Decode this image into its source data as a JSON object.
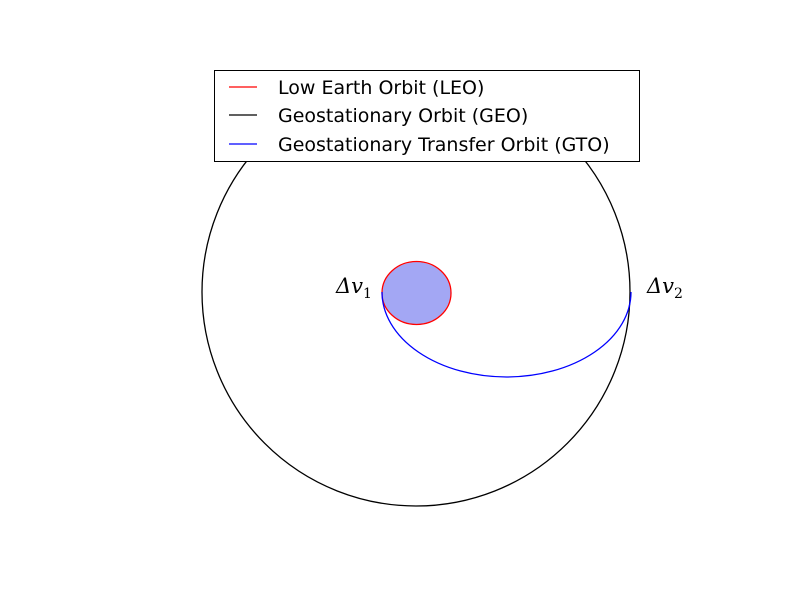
{
  "legend": {
    "placement": "top-center",
    "items": [
      {
        "label": "Low Earth Orbit (LEO)",
        "color": "#ff0000"
      },
      {
        "label": "Geostationary Orbit (GEO)",
        "color": "#000000"
      },
      {
        "label": "Geostationary Transfer Orbit (GTO)",
        "color": "#0000ff"
      }
    ]
  },
  "annotations": {
    "dv1": {
      "symbol": "Δv",
      "subscript": "1"
    },
    "dv2": {
      "symbol": "Δv",
      "subscript": "2"
    }
  },
  "colors": {
    "earth_fill": "#a3a7f4",
    "leo": "#ff0000",
    "geo": "#000000",
    "gto": "#0000ff"
  }
}
